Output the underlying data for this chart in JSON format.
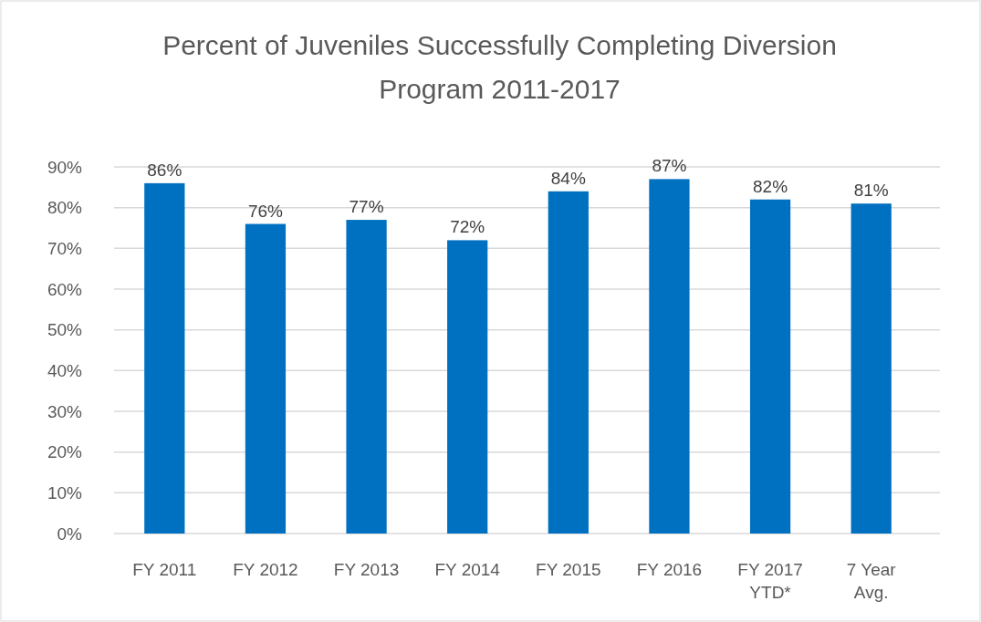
{
  "chart_data": {
    "type": "bar",
    "title": "Percent of Juveniles Successfully Completing Diversion Program 2011-2017",
    "categories": [
      "FY 2011",
      "FY 2012",
      "FY 2013",
      "FY 2014",
      "FY 2015",
      "FY 2016",
      "FY 2017 YTD*",
      "7 Year Avg."
    ],
    "values": [
      86,
      76,
      77,
      72,
      84,
      87,
      82,
      81
    ],
    "value_labels": [
      "86%",
      "76%",
      "77%",
      "72%",
      "84%",
      "87%",
      "82%",
      "81%"
    ],
    "color": "#0070c0",
    "ylim": [
      0,
      90
    ],
    "yticks": [
      {
        "value": 0,
        "label": "0%"
      },
      {
        "value": 10,
        "label": "10%"
      },
      {
        "value": 20,
        "label": "20%"
      },
      {
        "value": 30,
        "label": "30%"
      },
      {
        "value": 40,
        "label": "40%"
      },
      {
        "value": 50,
        "label": "50%"
      },
      {
        "value": 60,
        "label": "60%"
      },
      {
        "value": 70,
        "label": "70%"
      },
      {
        "value": 80,
        "label": "80%"
      },
      {
        "value": 90,
        "label": "90%"
      }
    ],
    "grid": true
  }
}
